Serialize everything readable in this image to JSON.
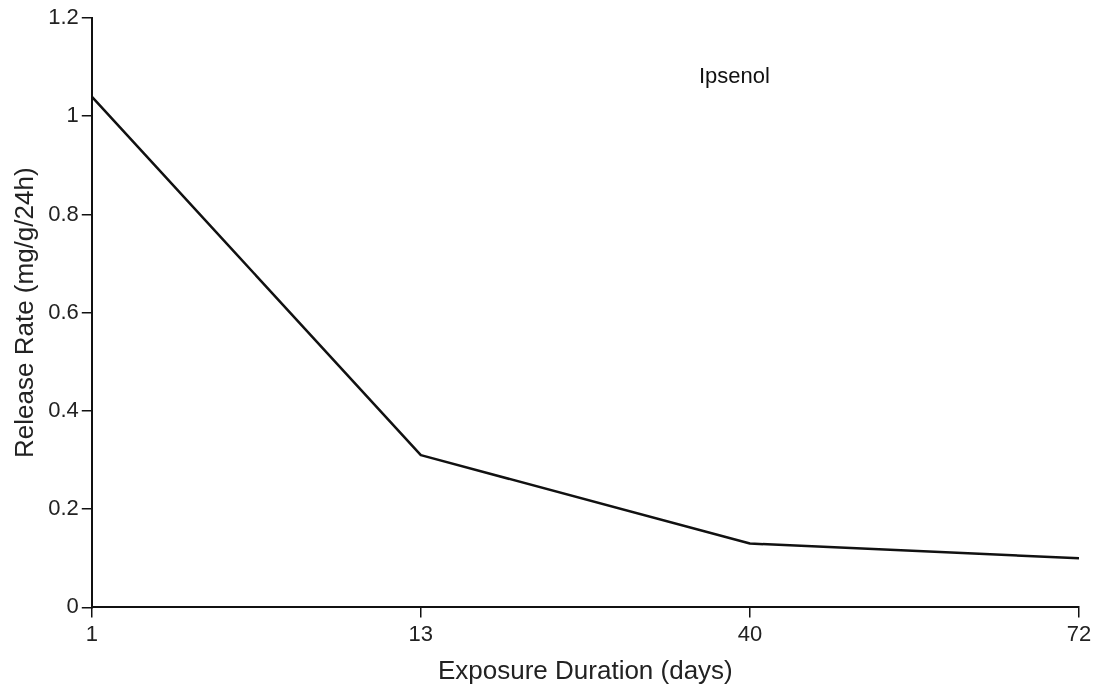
{
  "chart_data": {
    "type": "line",
    "xlabel": "Exposure Duration (days)",
    "ylabel": "Release Rate (mg/g/24h)",
    "categories": [
      "1",
      "13",
      "40",
      "72"
    ],
    "series": [
      {
        "color": "#111111",
        "values": [
          1.04,
          0.31,
          0.13,
          0.1
        ]
      }
    ],
    "ylim": [
      0,
      1.2
    ],
    "yticks": [
      0,
      0.2,
      0.4,
      0.6,
      0.8,
      1,
      1.2
    ],
    "annotations": [
      "Ipsenol"
    ],
    "grid": false,
    "legend": false,
    "marker": "none"
  }
}
